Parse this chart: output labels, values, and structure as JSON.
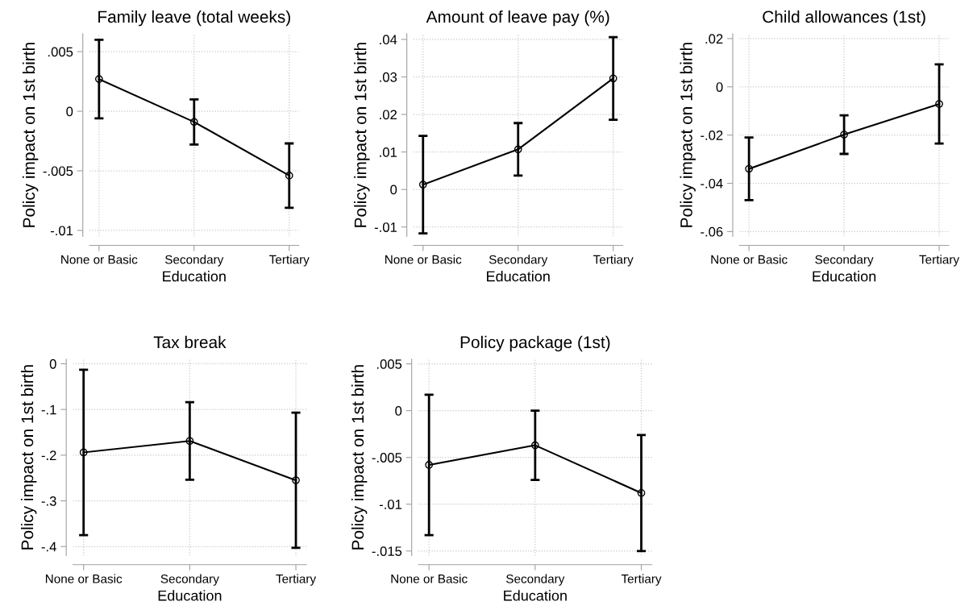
{
  "chart_data": [
    {
      "type": "line",
      "title": "Family leave (total weeks)",
      "xlabel": "Education",
      "ylabel": "Policy impact on 1st birth",
      "categories": [
        "None or Basic",
        "Secondary",
        "Tertiary"
      ],
      "series": [
        {
          "color": "#000000",
          "values": [
            0.0027,
            -0.0009,
            -0.0054
          ],
          "errors": [
            0.0033,
            0.0019,
            0.0027
          ]
        }
      ],
      "ylim": [
        -0.0105,
        0.0065
      ],
      "yticks": [
        {
          "value": -0.01,
          "label": "-.01"
        },
        {
          "value": -0.005,
          "label": "-.005"
        },
        0,
        {
          "value": 0.005,
          "label": ".005"
        }
      ],
      "grid": true,
      "marker": "circle",
      "line_style": "solid"
    },
    {
      "type": "line",
      "title": "Amount of leave pay (%)",
      "xlabel": "Education",
      "ylabel": "Policy impact on 1st birth",
      "categories": [
        "None or Basic",
        "Secondary",
        "Tertiary"
      ],
      "series": [
        {
          "color": "#000000",
          "values": [
            0.0013,
            0.0107,
            0.0296
          ],
          "errors": [
            0.013,
            0.007,
            0.011
          ]
        }
      ],
      "ylim": [
        -0.0125,
        0.0415
      ],
      "yticks": [
        {
          "value": -0.01,
          "label": "-.01"
        },
        0,
        {
          "value": 0.01,
          "label": ".01"
        },
        {
          "value": 0.02,
          "label": ".02"
        },
        {
          "value": 0.03,
          "label": ".03"
        },
        {
          "value": 0.04,
          "label": ".04"
        }
      ],
      "grid": true,
      "marker": "circle",
      "line_style": "solid"
    },
    {
      "type": "line",
      "title": "Child allowances (1st)",
      "xlabel": "Education",
      "ylabel": "Policy impact on 1st birth",
      "categories": [
        "None or Basic",
        "Secondary",
        "Tertiary"
      ],
      "series": [
        {
          "color": "#000000",
          "values": [
            -0.034,
            -0.0198,
            -0.0071
          ],
          "errors": [
            0.013,
            0.008,
            0.0164
          ]
        }
      ],
      "ylim": [
        -0.062,
        0.022
      ],
      "yticks": [
        {
          "value": -0.06,
          "label": "-.06"
        },
        {
          "value": -0.04,
          "label": "-.04"
        },
        {
          "value": -0.02,
          "label": "-.02"
        },
        0,
        {
          "value": 0.02,
          "label": ".02"
        }
      ],
      "grid": true,
      "marker": "circle",
      "line_style": "solid"
    },
    {
      "type": "line",
      "title": "Tax break",
      "xlabel": "Education",
      "ylabel": "Policy impact on 1st birth",
      "categories": [
        "None or Basic",
        "Secondary",
        "Tertiary"
      ],
      "series": [
        {
          "color": "#000000",
          "values": [
            -0.194,
            -0.169,
            -0.255
          ],
          "errors": [
            0.181,
            0.085,
            0.148
          ]
        }
      ],
      "ylim": [
        -0.42,
        0.01
      ],
      "yticks": [
        {
          "value": -0.4,
          "label": "-.4"
        },
        {
          "value": -0.3,
          "label": "-.3"
        },
        {
          "value": -0.2,
          "label": "-.2"
        },
        {
          "value": -0.1,
          "label": "-.1"
        },
        0
      ],
      "grid": true,
      "marker": "circle",
      "line_style": "solid"
    },
    {
      "type": "line",
      "title": "Policy package (1st)",
      "xlabel": "Education",
      "ylabel": "Policy impact on 1st birth",
      "categories": [
        "None or Basic",
        "Secondary",
        "Tertiary"
      ],
      "series": [
        {
          "color": "#000000",
          "values": [
            -0.0058,
            -0.0037,
            -0.0088
          ],
          "errors": [
            0.0075,
            0.0037,
            0.0062
          ]
        }
      ],
      "ylim": [
        -0.0155,
        0.0055
      ],
      "yticks": [
        {
          "value": -0.015,
          "label": "-.015"
        },
        {
          "value": -0.01,
          "label": "-.01"
        },
        {
          "value": -0.005,
          "label": "-.005"
        },
        0,
        {
          "value": 0.005,
          "label": ".005"
        }
      ],
      "grid": true,
      "marker": "circle",
      "line_style": "solid"
    }
  ]
}
